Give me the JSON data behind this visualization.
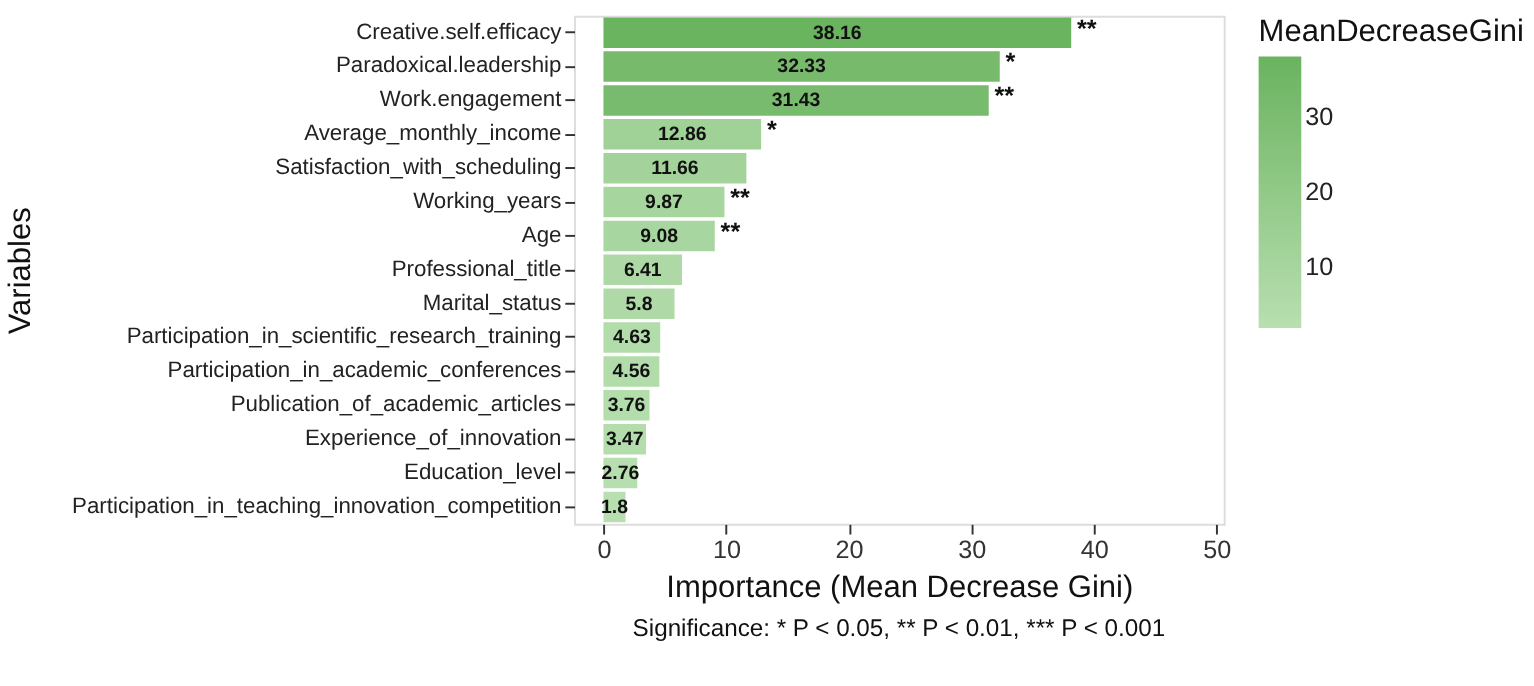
{
  "chart_data": {
    "type": "bar",
    "orientation": "horizontal",
    "xlabel": "Importance (Mean Decrease Gini)",
    "ylabel": "Variables",
    "legend_title": "MeanDecreaseGini",
    "categories": [
      "Creative.self.efficacy",
      "Paradoxical.leadership",
      "Work.engagement",
      "Average_monthly_income",
      "Satisfaction_with_scheduling",
      "Working_years",
      "Age",
      "Professional_title",
      "Marital_status",
      "Participation_in_scientific_research_training",
      "Participation_in_academic_conferences",
      "Publication_of_academic_articles",
      "Experience_of_innovation",
      "Education_level",
      "Participation_in_teaching_innovation_competition"
    ],
    "values": [
      38.16,
      32.33,
      31.43,
      12.86,
      11.66,
      9.87,
      9.08,
      6.41,
      5.8,
      4.63,
      4.56,
      3.76,
      3.47,
      2.76,
      1.8
    ],
    "colors": [
      "#6ab35f",
      "#77ba6c",
      "#78bb6e",
      "#a0d297",
      "#a3d39a",
      "#a7d59e",
      "#a8d6a0",
      "#aed9a6",
      "#afdaa7",
      "#b2dcaa",
      "#b2dcaa",
      "#b4ddac",
      "#b4ddac",
      "#b6deae",
      "#b8dfb0"
    ],
    "data_labels": true,
    "xlim": [
      -2.4,
      50.6
    ],
    "xticks": [
      0,
      10,
      20,
      30,
      40,
      50
    ],
    "clim": [
      1.8,
      38.16
    ],
    "cticks": [
      10,
      20,
      30
    ],
    "grid": false,
    "annotations": [
      {
        "text": "**",
        "x": 38.16,
        "y": "Creative.self.efficacy"
      },
      {
        "text": "*",
        "x": 32.33,
        "y": "Paradoxical.leadership"
      },
      {
        "text": "**",
        "x": 31.43,
        "y": "Work.engagement"
      },
      {
        "text": "*",
        "x": 12.86,
        "y": "Average_monthly_income"
      },
      {
        "text": "**",
        "x": 9.87,
        "y": "Working_years"
      },
      {
        "text": "**",
        "x": 9.08,
        "y": "Age"
      },
      "Significance: * P < 0.05, ** P < 0.01, *** P < 0.001"
    ]
  }
}
